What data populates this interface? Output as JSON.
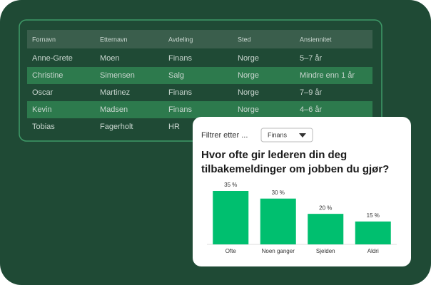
{
  "table": {
    "headers": [
      "Fornavn",
      "Etternavn",
      "Avdeling",
      "Sted",
      "Ansiennitet"
    ],
    "rows": [
      [
        "Anne-Grete",
        "Moen",
        "Finans",
        "Norge",
        "5–7 år"
      ],
      [
        "Christine",
        "Simensen",
        "Salg",
        "Norge",
        "Mindre enn 1 år"
      ],
      [
        "Oscar",
        "Martinez",
        "Finans",
        "Norge",
        "7–9 år"
      ],
      [
        "Kevin",
        "Madsen",
        "Finans",
        "Norge",
        "4–6 år"
      ],
      [
        "Tobias",
        "Fagerholt",
        "HR",
        "",
        ""
      ]
    ]
  },
  "filter": {
    "label": "Filtrer etter ...",
    "value": "Finans"
  },
  "chart_data": {
    "type": "bar",
    "title": "Hvor ofte gir lederen din deg tilbakemeldinger om jobben du gjør?",
    "categories": [
      "Ofte",
      "Noen ganger",
      "Sjelden",
      "Aldri"
    ],
    "values": [
      35,
      30,
      20,
      15
    ],
    "value_labels": [
      "35 %",
      "30 %",
      "20 %",
      "15 %"
    ],
    "color": "#00bf6f",
    "ylim": [
      0,
      35
    ]
  }
}
